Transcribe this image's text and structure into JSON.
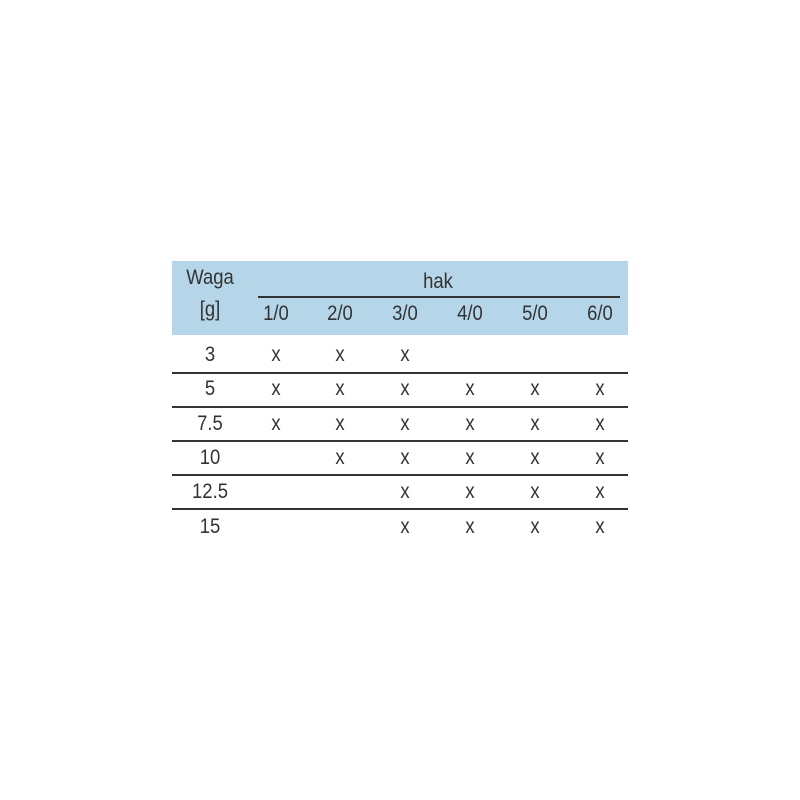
{
  "table": {
    "row_header": [
      "Waga",
      "[g]"
    ],
    "group_header": "hak",
    "columns": [
      "1/0",
      "2/0",
      "3/0",
      "4/0",
      "5/0",
      "6/0"
    ],
    "rows": [
      {
        "weight": "3",
        "cells": [
          "x",
          "x",
          "x",
          "",
          "",
          ""
        ]
      },
      {
        "weight": "5",
        "cells": [
          "x",
          "x",
          "x",
          "x",
          "x",
          "x"
        ]
      },
      {
        "weight": "7.5",
        "cells": [
          "x",
          "x",
          "x",
          "x",
          "x",
          "x"
        ]
      },
      {
        "weight": "10",
        "cells": [
          "",
          "x",
          "x",
          "x",
          "x",
          "x"
        ]
      },
      {
        "weight": "12.5",
        "cells": [
          "",
          "",
          "x",
          "x",
          "x",
          "x"
        ]
      },
      {
        "weight": "15",
        "cells": [
          "",
          "",
          "x",
          "x",
          "x",
          "x"
        ]
      }
    ],
    "header_color": "#b5d5e9"
  }
}
